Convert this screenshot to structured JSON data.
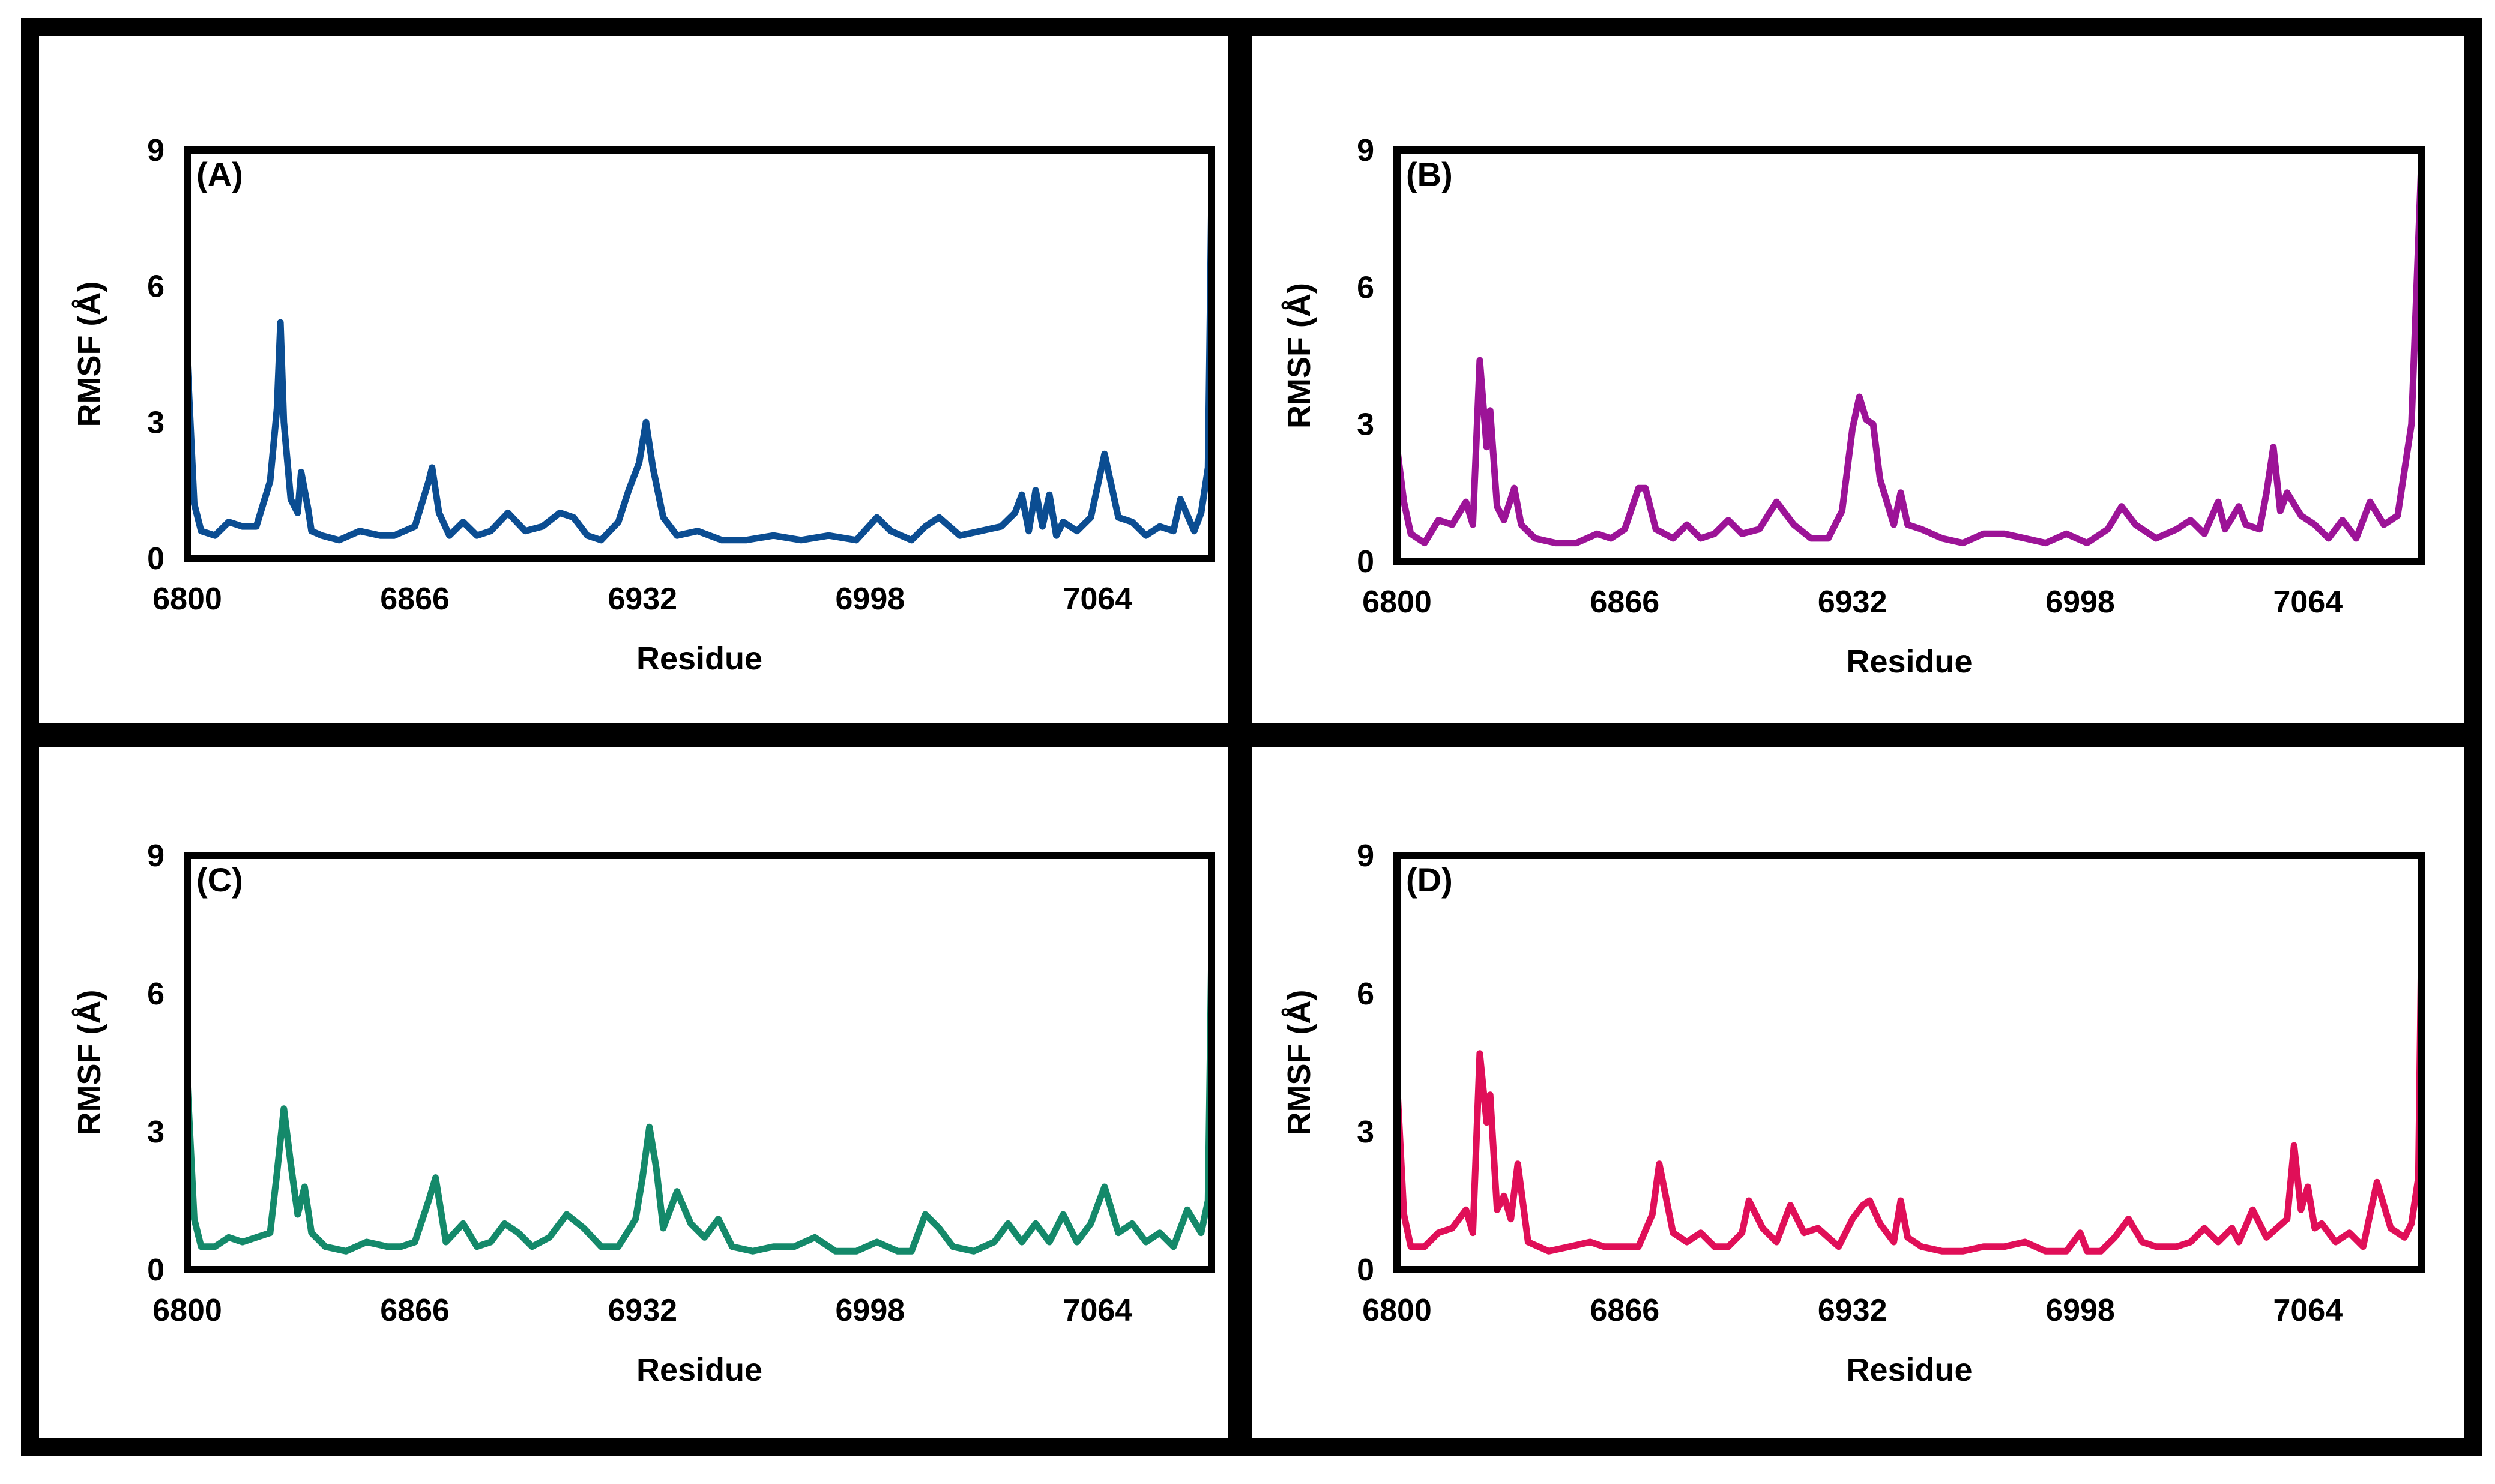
{
  "chart_data": [
    {
      "type": "line",
      "panel_label": "(A)",
      "xlabel": "Residue",
      "ylabel": "RMSF (Å)",
      "xlim": [
        6800,
        7097
      ],
      "ylim": [
        0,
        9
      ],
      "xticks": [
        "6800",
        "6866",
        "6932",
        "6998",
        "7064"
      ],
      "yticks": [
        "0",
        "3",
        "6",
        "9"
      ],
      "color": "#0b4d92",
      "series": [
        {
          "name": "A",
          "x": [
            6800,
            6802,
            6804,
            6808,
            6812,
            6816,
            6820,
            6824,
            6826,
            6827,
            6828,
            6830,
            6832,
            6833,
            6835,
            6836,
            6839,
            6844,
            6850,
            6856,
            6860,
            6866,
            6870,
            6871,
            6873,
            6876,
            6880,
            6884,
            6888,
            6893,
            6898,
            6903,
            6908,
            6912,
            6916,
            6920,
            6925,
            6928,
            6931,
            6933,
            6935,
            6938,
            6942,
            6948,
            6955,
            6962,
            6970,
            6978,
            6986,
            6994,
            7000,
            7004,
            7010,
            7014,
            7018,
            7024,
            7030,
            7036,
            7040,
            7042,
            7044,
            7046,
            7048,
            7050,
            7052,
            7054,
            7058,
            7062,
            7066,
            7070,
            7074,
            7078,
            7082,
            7086,
            7088,
            7092,
            7094,
            7096,
            7097
          ],
          "values": [
            4.4,
            1.2,
            0.6,
            0.5,
            0.8,
            0.7,
            0.7,
            1.7,
            3.3,
            5.2,
            3.0,
            1.3,
            1.0,
            1.9,
            1.1,
            0.6,
            0.5,
            0.4,
            0.6,
            0.5,
            0.5,
            0.7,
            1.7,
            2.0,
            1.0,
            0.5,
            0.8,
            0.5,
            0.6,
            1.0,
            0.6,
            0.7,
            1.0,
            0.9,
            0.5,
            0.4,
            0.8,
            1.5,
            2.1,
            3.0,
            2.0,
            0.9,
            0.5,
            0.6,
            0.4,
            0.4,
            0.5,
            0.4,
            0.5,
            0.4,
            0.9,
            0.6,
            0.4,
            0.7,
            0.9,
            0.5,
            0.6,
            0.7,
            1.0,
            1.4,
            0.6,
            1.5,
            0.7,
            1.4,
            0.5,
            0.8,
            0.6,
            0.9,
            2.3,
            0.9,
            0.8,
            0.5,
            0.7,
            0.6,
            1.3,
            0.6,
            1.0,
            2.0,
            8.1
          ]
        }
      ]
    },
    {
      "type": "line",
      "panel_label": "(B)",
      "xlabel": "Residue",
      "ylabel": "RMSF (Å)",
      "xlim": [
        6800,
        7097
      ],
      "ylim": [
        0,
        9
      ],
      "xticks": [
        "6800",
        "6866",
        "6932",
        "6998",
        "7064"
      ],
      "yticks": [
        "0",
        "3",
        "6",
        "9"
      ],
      "color": "#9c1397",
      "series": [
        {
          "name": "B",
          "x": [
            6800,
            6802,
            6804,
            6808,
            6812,
            6816,
            6820,
            6822,
            6824,
            6826,
            6827,
            6829,
            6831,
            6834,
            6836,
            6840,
            6846,
            6852,
            6858,
            6862,
            6866,
            6870,
            6872,
            6875,
            6880,
            6884,
            6888,
            6892,
            6896,
            6900,
            6905,
            6910,
            6915,
            6920,
            6925,
            6929,
            6932,
            6934,
            6936,
            6938,
            6940,
            6944,
            6946,
            6948,
            6952,
            6958,
            6964,
            6970,
            6976,
            6982,
            6988,
            6994,
            7000,
            7006,
            7010,
            7014,
            7020,
            7026,
            7030,
            7034,
            7038,
            7040,
            7044,
            7046,
            7050,
            7052,
            7054,
            7056,
            7058,
            7062,
            7066,
            7070,
            7074,
            7078,
            7082,
            7086,
            7090,
            7094,
            7097
          ],
          "values": [
            2.5,
            1.3,
            0.6,
            0.4,
            0.9,
            0.8,
            1.3,
            0.8,
            4.4,
            2.5,
            3.3,
            1.2,
            0.9,
            1.6,
            0.8,
            0.5,
            0.4,
            0.4,
            0.6,
            0.5,
            0.7,
            1.6,
            1.6,
            0.7,
            0.5,
            0.8,
            0.5,
            0.6,
            0.9,
            0.6,
            0.7,
            1.3,
            0.8,
            0.5,
            0.5,
            1.1,
            2.9,
            3.6,
            3.1,
            3.0,
            1.8,
            0.8,
            1.5,
            0.8,
            0.7,
            0.5,
            0.4,
            0.6,
            0.6,
            0.5,
            0.4,
            0.6,
            0.4,
            0.7,
            1.2,
            0.8,
            0.5,
            0.7,
            0.9,
            0.6,
            1.3,
            0.7,
            1.2,
            0.8,
            0.7,
            1.5,
            2.5,
            1.1,
            1.5,
            1.0,
            0.8,
            0.5,
            0.9,
            0.5,
            1.3,
            0.8,
            1.0,
            3.0,
            9.0
          ]
        }
      ]
    },
    {
      "type": "line",
      "panel_label": "(C)",
      "xlabel": "Residue",
      "ylabel": "RMSF (Å)",
      "xlim": [
        6800,
        7097
      ],
      "ylim": [
        0,
        9
      ],
      "xticks": [
        "6800",
        "6866",
        "6932",
        "6998",
        "7064"
      ],
      "yticks": [
        "0",
        "3",
        "6",
        "9"
      ],
      "color": "#14896a",
      "series": [
        {
          "name": "C",
          "x": [
            6800,
            6802,
            6804,
            6808,
            6812,
            6816,
            6820,
            6824,
            6826,
            6828,
            6830,
            6832,
            6834,
            6836,
            6840,
            6846,
            6852,
            6858,
            6862,
            6866,
            6870,
            6872,
            6875,
            6880,
            6884,
            6888,
            6892,
            6896,
            6900,
            6905,
            6910,
            6915,
            6920,
            6925,
            6930,
            6932,
            6934,
            6936,
            6938,
            6942,
            6946,
            6950,
            6954,
            6958,
            6964,
            6970,
            6976,
            6982,
            6988,
            6994,
            7000,
            7006,
            7010,
            7014,
            7018,
            7022,
            7028,
            7034,
            7038,
            7042,
            7046,
            7050,
            7054,
            7058,
            7062,
            7066,
            7070,
            7074,
            7078,
            7082,
            7086,
            7090,
            7094,
            7096,
            7097
          ],
          "values": [
            4.1,
            1.1,
            0.5,
            0.5,
            0.7,
            0.6,
            0.7,
            0.8,
            2.1,
            3.5,
            2.3,
            1.2,
            1.8,
            0.8,
            0.5,
            0.4,
            0.6,
            0.5,
            0.5,
            0.6,
            1.5,
            2.0,
            0.6,
            1.0,
            0.5,
            0.6,
            1.0,
            0.8,
            0.5,
            0.7,
            1.2,
            0.9,
            0.5,
            0.5,
            1.1,
            2.0,
            3.1,
            2.2,
            0.9,
            1.7,
            1.0,
            0.7,
            1.1,
            0.5,
            0.4,
            0.5,
            0.5,
            0.7,
            0.4,
            0.4,
            0.6,
            0.4,
            0.4,
            1.2,
            0.9,
            0.5,
            0.4,
            0.6,
            1.0,
            0.6,
            1.0,
            0.6,
            1.2,
            0.6,
            1.0,
            1.8,
            0.8,
            1.0,
            0.6,
            0.8,
            0.5,
            1.3,
            0.8,
            1.5,
            7.0
          ]
        }
      ]
    },
    {
      "type": "line",
      "panel_label": "(D)",
      "xlabel": "Residue",
      "ylabel": "RMSF (Å)",
      "xlim": [
        6800,
        7097
      ],
      "ylim": [
        0,
        9
      ],
      "xticks": [
        "6800",
        "6866",
        "6932",
        "6998",
        "7064"
      ],
      "yticks": [
        "0",
        "3",
        "6",
        "9"
      ],
      "color": "#e00f58",
      "series": [
        {
          "name": "D",
          "x": [
            6800,
            6802,
            6804,
            6808,
            6812,
            6816,
            6820,
            6822,
            6824,
            6826,
            6827,
            6829,
            6831,
            6833,
            6835,
            6838,
            6844,
            6850,
            6856,
            6860,
            6866,
            6870,
            6874,
            6876,
            6880,
            6884,
            6888,
            6892,
            6896,
            6900,
            6902,
            6906,
            6910,
            6914,
            6918,
            6922,
            6928,
            6932,
            6935,
            6937,
            6940,
            6944,
            6946,
            6948,
            6952,
            6958,
            6964,
            6970,
            6976,
            6982,
            6988,
            6994,
            6998,
            7000,
            7004,
            7008,
            7012,
            7016,
            7020,
            7026,
            7030,
            7034,
            7038,
            7042,
            7044,
            7048,
            7052,
            7058,
            7060,
            7062,
            7064,
            7066,
            7068,
            7072,
            7076,
            7080,
            7084,
            7088,
            7092,
            7094,
            7096,
            7097
          ],
          "values": [
            4.1,
            1.2,
            0.5,
            0.5,
            0.8,
            0.9,
            1.3,
            0.8,
            4.7,
            3.2,
            3.8,
            1.3,
            1.6,
            1.1,
            2.3,
            0.6,
            0.4,
            0.5,
            0.6,
            0.5,
            0.5,
            0.5,
            1.2,
            2.3,
            0.8,
            0.6,
            0.8,
            0.5,
            0.5,
            0.8,
            1.5,
            0.9,
            0.6,
            1.4,
            0.8,
            0.9,
            0.5,
            1.1,
            1.4,
            1.5,
            1.0,
            0.6,
            1.5,
            0.7,
            0.5,
            0.4,
            0.4,
            0.5,
            0.5,
            0.6,
            0.4,
            0.4,
            0.8,
            0.4,
            0.4,
            0.7,
            1.1,
            0.6,
            0.5,
            0.5,
            0.6,
            0.9,
            0.6,
            0.9,
            0.6,
            1.3,
            0.7,
            1.1,
            2.7,
            1.3,
            1.8,
            0.9,
            1.0,
            0.6,
            0.8,
            0.5,
            1.9,
            0.9,
            0.7,
            1.0,
            2.0,
            7.9
          ]
        }
      ]
    }
  ]
}
